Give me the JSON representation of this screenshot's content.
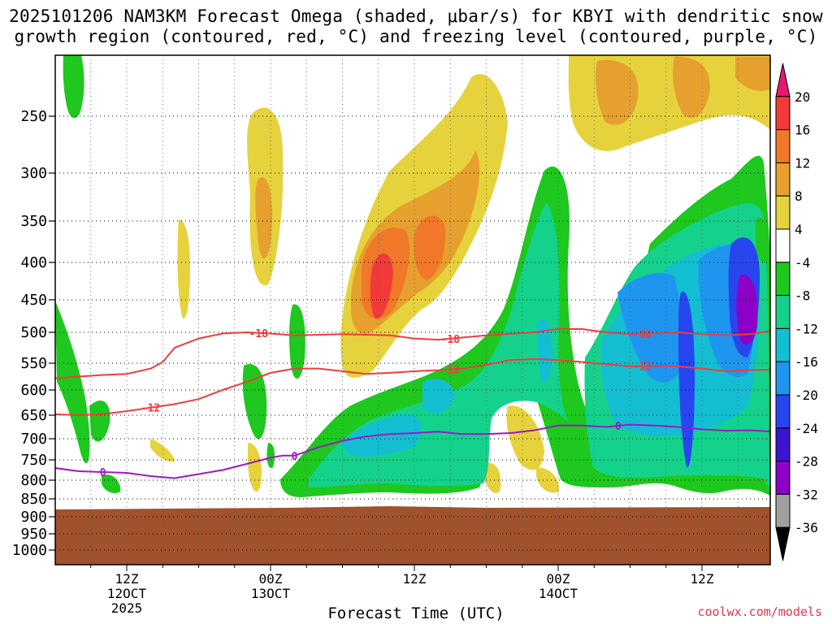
{
  "header": {
    "title_line1": "2025101206 NAM3KM Forecast Omega (shaded, μbar/s) for KBYI with dendritic snow",
    "title_line2": "growth region (contoured, red, °C) and freezing level (contoured, purple, °C)"
  },
  "footer": {
    "credit": "coolwx.com/models"
  },
  "chart_data": {
    "type": "heatmap",
    "title": "2025101206 NAM3KM Forecast Omega (shaded, μbar/s) for KBYI with dendritic snow growth region (contoured, red, °C) and freezing level (contoured, purple, °C)",
    "xlabel": "Forecast Time (UTC)",
    "ylabel": "",
    "x_ticks": [
      {
        "hour": 6,
        "label": "12Z",
        "sub1": "12OCT",
        "sub2": "2025"
      },
      {
        "hour": 18,
        "label": "00Z",
        "sub1": "13OCT",
        "sub2": ""
      },
      {
        "hour": 30,
        "label": "12Z",
        "sub1": "",
        "sub2": ""
      },
      {
        "hour": 42,
        "label": "00Z",
        "sub1": "14OCT",
        "sub2": ""
      },
      {
        "hour": 54,
        "label": "12Z",
        "sub1": "",
        "sub2": ""
      }
    ],
    "x_range_hours": [
      0,
      60
    ],
    "y_ticks": [
      "250",
      "300",
      "350",
      "400",
      "450",
      "500",
      "550",
      "600",
      "650",
      "700",
      "750",
      "800",
      "850",
      "900",
      "950",
      "1000"
    ],
    "y_range_hPa": [
      200,
      1000
    ],
    "y_scale": "log-pressure",
    "grid": true,
    "colorbar": {
      "levels": [
        "20",
        "16",
        "12",
        "8",
        "4",
        "-4",
        "-8",
        "-12",
        "-16",
        "-20",
        "-24",
        "-28",
        "-32",
        "-36"
      ],
      "colors": [
        "#e6196e",
        "#f23a3a",
        "#f07828",
        "#e6a02d",
        "#e6d23c",
        "#ffffff",
        "#1ec81e",
        "#14d28c",
        "#14bed2",
        "#1e96f0",
        "#2846f0",
        "#3c14d2",
        "#8c00c8",
        "#a0a0a0",
        "#000000"
      ]
    },
    "terrain_color": "#a0522d",
    "terrain_top_hPa": 875,
    "contours": [
      {
        "name": "dgz",
        "color": "#f03c3c",
        "label": "-18",
        "x": [
          0,
          2,
          4,
          6,
          8,
          9,
          10,
          12,
          14,
          16,
          18,
          20,
          24,
          28,
          30,
          32,
          36,
          40,
          42,
          44,
          46,
          48,
          50,
          52,
          54,
          56,
          58,
          60
        ],
        "y": [
          578,
          575,
          572,
          570,
          560,
          548,
          525,
          510,
          502,
          500,
          502,
          505,
          503,
          505,
          510,
          512,
          505,
          500,
          495,
          495,
          500,
          503,
          502,
          500,
          503,
          505,
          503,
          497
        ],
        "label_x": [
          17,
          33,
          49
        ]
      },
      {
        "name": "dgz",
        "color": "#f03c3c",
        "label": "-12",
        "x": [
          0,
          2,
          4,
          6,
          8,
          10,
          12,
          14,
          16,
          18,
          20,
          22,
          24,
          26,
          28,
          30,
          32,
          34,
          36,
          38,
          40,
          42,
          44,
          46,
          48,
          50,
          52,
          54,
          56,
          58,
          60
        ],
        "y": [
          648,
          650,
          648,
          642,
          635,
          628,
          618,
          600,
          585,
          568,
          560,
          560,
          565,
          570,
          568,
          565,
          563,
          560,
          553,
          545,
          543,
          545,
          548,
          552,
          556,
          555,
          556,
          560,
          565,
          563,
          562
        ],
        "label_x": [
          8,
          33,
          49
        ]
      },
      {
        "name": "freezing_level",
        "color": "#9b19c8",
        "label": "0",
        "x": [
          0,
          2,
          4,
          6,
          8,
          10,
          12,
          14,
          16,
          18,
          19,
          20,
          22,
          24,
          26,
          28,
          30,
          32,
          34,
          36,
          38,
          40,
          42,
          44,
          46,
          48,
          50,
          52,
          54,
          56,
          58,
          60
        ],
        "y": [
          770,
          778,
          780,
          782,
          790,
          795,
          785,
          775,
          760,
          745,
          740,
          740,
          720,
          705,
          695,
          690,
          688,
          685,
          690,
          690,
          688,
          682,
          672,
          672,
          675,
          670,
          672,
          675,
          680,
          683,
          682,
          685
        ],
        "label_x": [
          4,
          20,
          47
        ]
      }
    ]
  }
}
